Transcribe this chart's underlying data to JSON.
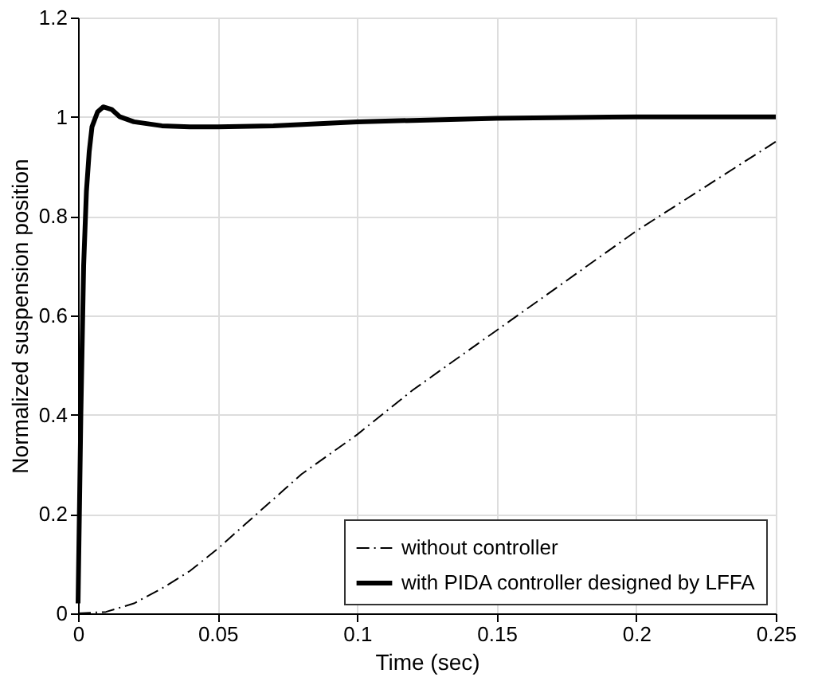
{
  "chart_data": {
    "type": "line",
    "xlabel": "Time (sec)",
    "ylabel": "Normalized suspension position",
    "xlim": [
      0,
      0.25
    ],
    "xticks": [
      0,
      0.05,
      0.1,
      0.15,
      0.2,
      0.25
    ],
    "ylim": [
      0,
      1.2
    ],
    "yticks": [
      0,
      0.2,
      0.4,
      0.6,
      0.8,
      1,
      1.2
    ],
    "grid": true,
    "legend": "bottom right",
    "marker": "none",
    "series": [
      {
        "name": "without controller",
        "color": "#000000",
        "line_style": "dashdot",
        "x": [
          0,
          0.01,
          0.02,
          0.03,
          0.04,
          0.05,
          0.06,
          0.07,
          0.08,
          0.1,
          0.12,
          0.15,
          0.2,
          0.25
        ],
        "values": [
          0,
          0.003,
          0.02,
          0.05,
          0.085,
          0.13,
          0.18,
          0.23,
          0.28,
          0.36,
          0.45,
          0.57,
          0.77,
          0.95
        ]
      },
      {
        "name": "with PIDA controller designed by LFFA",
        "color": "#000000",
        "line_style": "solid",
        "x": [
          0,
          0.001,
          0.002,
          0.003,
          0.004,
          0.005,
          0.007,
          0.009,
          0.012,
          0.015,
          0.02,
          0.03,
          0.04,
          0.05,
          0.07,
          0.1,
          0.15,
          0.2,
          0.25
        ],
        "values": [
          0.02,
          0.4,
          0.7,
          0.85,
          0.93,
          0.98,
          1.01,
          1.02,
          1.015,
          1.0,
          0.99,
          0.982,
          0.98,
          0.98,
          0.982,
          0.99,
          0.997,
          1.0,
          1.0
        ]
      }
    ]
  }
}
